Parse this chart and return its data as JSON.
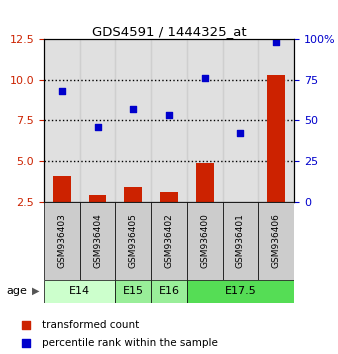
{
  "title": "GDS4591 / 1444325_at",
  "samples": [
    "GSM936403",
    "GSM936404",
    "GSM936405",
    "GSM936402",
    "GSM936400",
    "GSM936401",
    "GSM936406"
  ],
  "transformed_counts": [
    4.1,
    2.9,
    3.4,
    3.1,
    4.9,
    2.4,
    10.3
  ],
  "percentile_ranks": [
    68,
    46,
    57,
    53,
    76,
    42,
    98
  ],
  "age_groups": [
    {
      "label": "E14",
      "samples": [
        0,
        1
      ],
      "color": "#ccffcc"
    },
    {
      "label": "E15",
      "samples": [
        2
      ],
      "color": "#99ee99"
    },
    {
      "label": "E16",
      "samples": [
        3
      ],
      "color": "#99ee99"
    },
    {
      "label": "E17.5",
      "samples": [
        4,
        5,
        6
      ],
      "color": "#55dd55"
    }
  ],
  "bar_color": "#cc2200",
  "dot_color": "#0000cc",
  "left_ylim": [
    2.5,
    12.5
  ],
  "right_ylim": [
    0,
    100
  ],
  "left_yticks": [
    2.5,
    5.0,
    7.5,
    10.0,
    12.5
  ],
  "right_yticks": [
    0,
    25,
    50,
    75,
    100
  ],
  "right_yticklabels": [
    "0",
    "25",
    "50",
    "75",
    "100%"
  ],
  "dotted_line_values": [
    5.0,
    7.5,
    10.0
  ],
  "sample_box_color": "#cccccc",
  "legend_label_bar": "transformed count",
  "legend_label_dot": "percentile rank within the sample",
  "age_label": "age"
}
